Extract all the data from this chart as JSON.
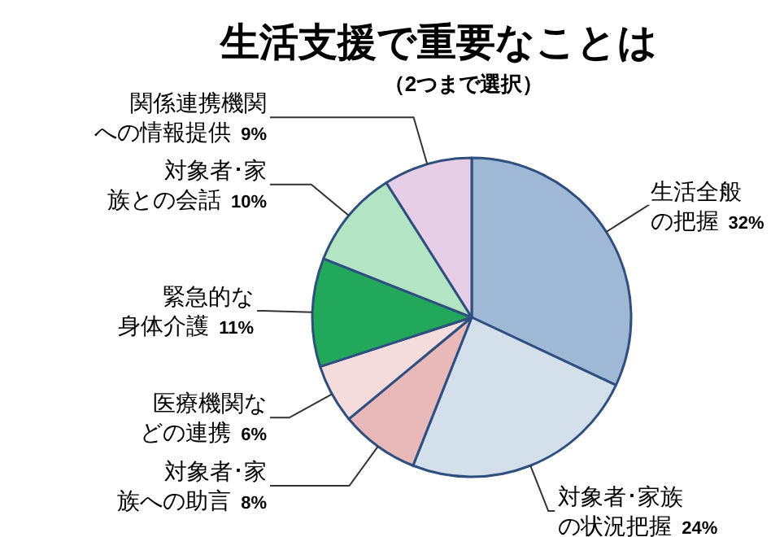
{
  "chart_data": {
    "type": "pie",
    "title": "生活支援で重要なことは",
    "subtitle": "（2つまで選択）",
    "categories": [
      "生活全般の把握",
      "対象者･家族の状況把握",
      "対象者･家族への助言",
      "医療機関などの連携",
      "緊急的な身体介護",
      "対象者･家族との会話",
      "関係連携機関への情報提供"
    ],
    "values": [
      32,
      24,
      8,
      6,
      11,
      10,
      9
    ],
    "value_labels": [
      "32%",
      "24%",
      "8%",
      "6%",
      "11%",
      "10%",
      "9%"
    ],
    "colors": [
      "#9fb8d6",
      "#d3e0ec",
      "#e9b9b9",
      "#f4dcdc",
      "#22a85a",
      "#b3e4c4",
      "#e6cfe6"
    ]
  }
}
